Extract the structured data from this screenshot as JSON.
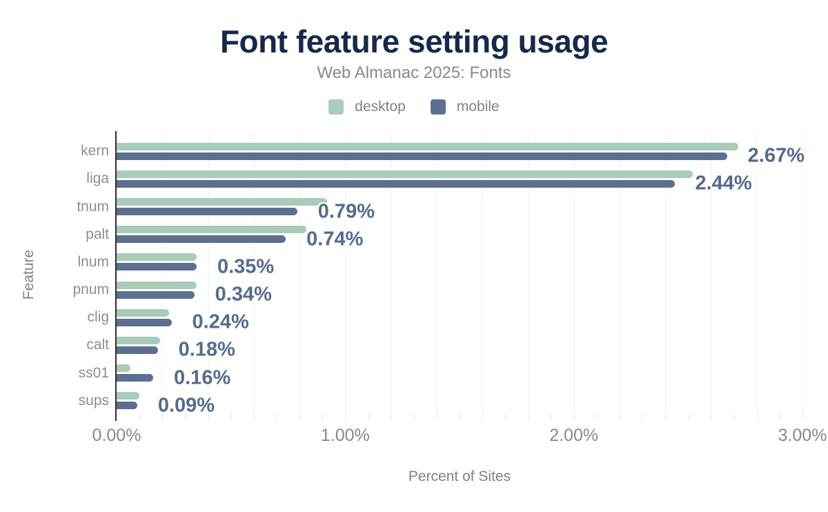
{
  "header": {
    "title": "Font feature setting usage",
    "subtitle": "Web Almanac 2025: Fonts"
  },
  "legend": [
    {
      "label": "desktop",
      "color": "#a8ccb8"
    },
    {
      "label": "mobile",
      "color": "#5c6f90"
    }
  ],
  "chart_data": {
    "type": "bar",
    "orientation": "horizontal",
    "title": "Font feature setting usage",
    "subtitle": "Web Almanac 2025: Fonts",
    "categories": [
      "kern",
      "liga",
      "tnum",
      "palt",
      "lnum",
      "pnum",
      "clig",
      "calt",
      "ss01",
      "sups"
    ],
    "series": [
      {
        "name": "desktop",
        "color": "#a8ccb8",
        "values": [
          2.72,
          2.52,
          0.92,
          0.83,
          0.35,
          0.35,
          0.23,
          0.19,
          0.06,
          0.1
        ]
      },
      {
        "name": "mobile",
        "color": "#5c6f90",
        "values": [
          2.67,
          2.44,
          0.79,
          0.74,
          0.35,
          0.34,
          0.24,
          0.18,
          0.16,
          0.09
        ]
      }
    ],
    "value_labels": [
      "2.67%",
      "2.44%",
      "0.79%",
      "0.74%",
      "0.35%",
      "0.34%",
      "0.24%",
      "0.18%",
      "0.16%",
      "0.09%"
    ],
    "value_label_series": "mobile",
    "xlabel": "Percent of Sites",
    "ylabel": "Feature",
    "xlim": [
      0,
      3
    ],
    "x_ticks": [
      {
        "value": 0,
        "label": "0.00%"
      },
      {
        "value": 1,
        "label": "1.00%"
      },
      {
        "value": 2,
        "label": "2.00%"
      },
      {
        "value": 3,
        "label": "3.00%"
      }
    ],
    "grid": {
      "major_step_pct": 0.2,
      "minor_tick_step_pct": 0.1,
      "legend_position": "top"
    }
  },
  "colors": {
    "title": "#16294c",
    "subtitle": "#85898e",
    "desktop_bar": "#a8ccb8",
    "mobile_bar": "#5c6f90",
    "value_label": "#546a8f",
    "axis_line": "#2d2d2e",
    "gridline": "#f3f3f3",
    "tick_text": "#85898f",
    "category_text": "#898e95",
    "axis_title_text": "#7d8187"
  }
}
